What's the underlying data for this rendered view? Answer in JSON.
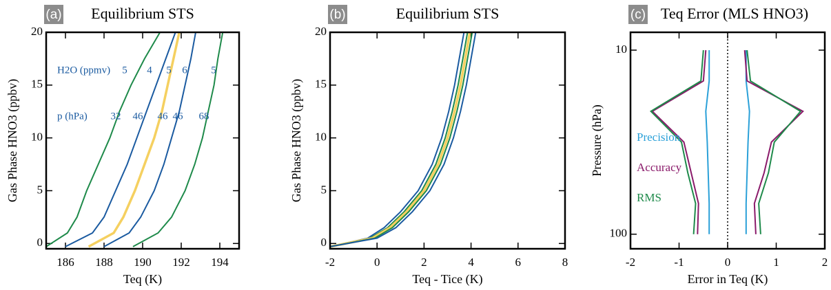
{
  "chart_data": [
    {
      "type": "line",
      "label": "(a)",
      "title": "Equilibrium STS",
      "xlabel": "Teq (K)",
      "ylabel": "Gas Phase HNO3 (ppbv)",
      "xlim": [
        185,
        195
      ],
      "xticks": [
        186,
        188,
        190,
        192,
        194
      ],
      "ylim": [
        -0.5,
        20
      ],
      "yticks": [
        0,
        5,
        10,
        15,
        20
      ],
      "h2o_label": "H2O (ppmv)",
      "p_label": "p (hPa)",
      "series": [
        {
          "color": "#1e8a4a",
          "h2o": 5,
          "p": 32,
          "x": [
            185.0,
            186.1,
            186.6,
            187.1,
            187.7,
            188.3,
            188.8,
            189.4,
            190.1,
            190.9
          ],
          "values": [
            -0.3,
            1,
            2.5,
            5,
            7.5,
            10,
            12.5,
            15,
            17.5,
            20
          ]
        },
        {
          "color": "#1a5aa0",
          "h2o": 4,
          "p": 46,
          "x": [
            186.0,
            187.4,
            188.0,
            188.6,
            189.2,
            189.7,
            190.2,
            190.7,
            191.2,
            191.7
          ],
          "values": [
            -0.3,
            1,
            2.5,
            5,
            7.5,
            10,
            12.5,
            15,
            17.5,
            20
          ]
        },
        {
          "color": "#f5d060",
          "h2o": 5,
          "p": 46,
          "x": [
            187.2,
            188.5,
            189.0,
            189.6,
            190.1,
            190.6,
            191.0,
            191.3,
            191.6,
            191.9
          ],
          "values": [
            -0.3,
            1,
            2.5,
            5,
            7.5,
            10,
            12.5,
            15,
            17.5,
            20
          ]
        },
        {
          "color": "#1a5aa0",
          "h2o": 6,
          "p": 46,
          "x": [
            188.0,
            189.3,
            189.9,
            190.6,
            191.1,
            191.5,
            191.9,
            192.2,
            192.5,
            192.75
          ],
          "values": [
            -0.3,
            1,
            2.5,
            5,
            7.5,
            10,
            12.5,
            15,
            17.5,
            20
          ]
        },
        {
          "color": "#1e8a4a",
          "h2o": 5,
          "p": 68,
          "x": [
            189.5,
            190.8,
            191.5,
            192.2,
            192.7,
            193.1,
            193.4,
            193.7,
            193.9,
            194.15
          ],
          "values": [
            -0.3,
            1,
            2.5,
            5,
            7.5,
            10,
            12.5,
            15,
            17.5,
            20
          ]
        }
      ]
    },
    {
      "type": "line",
      "label": "(b)",
      "title": "Equilibrium STS",
      "xlabel": "Teq - Tice (K)",
      "ylabel": "Gas Phase HNO3 (ppbv)",
      "xlim": [
        -2,
        8
      ],
      "xticks": [
        -2,
        0,
        2,
        4,
        6,
        8
      ],
      "ylim": [
        -0.5,
        20
      ],
      "yticks": [
        0,
        5,
        10,
        15,
        20
      ],
      "series": [
        {
          "color": "#1a5aa0",
          "x": [
            -2,
            -0.4,
            0.3,
            1.0,
            1.75,
            2.35,
            2.75,
            3.05,
            3.3,
            3.5,
            3.7
          ],
          "values": [
            -0.3,
            0.5,
            1.5,
            3,
            5,
            7.5,
            10,
            12.5,
            15,
            17.5,
            20
          ]
        },
        {
          "color": "#1e8a4a",
          "x": [
            -2,
            -0.3,
            0.45,
            1.15,
            1.9,
            2.5,
            2.9,
            3.2,
            3.45,
            3.65,
            3.85
          ],
          "values": [
            -0.3,
            0.5,
            1.5,
            3,
            5,
            7.5,
            10,
            12.5,
            15,
            17.5,
            20
          ]
        },
        {
          "color": "#f5d060",
          "x": [
            -2,
            -0.2,
            0.55,
            1.25,
            2.0,
            2.6,
            3.0,
            3.3,
            3.55,
            3.75,
            3.95
          ],
          "values": [
            -0.3,
            0.5,
            1.5,
            3,
            5,
            7.5,
            10,
            12.5,
            15,
            17.5,
            20
          ]
        },
        {
          "color": "#1e8a4a",
          "x": [
            -2,
            -0.1,
            0.65,
            1.35,
            2.1,
            2.7,
            3.1,
            3.4,
            3.65,
            3.85,
            4.05
          ],
          "values": [
            -0.3,
            0.5,
            1.5,
            3,
            5,
            7.5,
            10,
            12.5,
            15,
            17.5,
            20
          ]
        },
        {
          "color": "#1a5aa0",
          "x": [
            -2,
            0.0,
            0.8,
            1.5,
            2.25,
            2.85,
            3.25,
            3.55,
            3.8,
            4.0,
            4.2
          ],
          "values": [
            -0.3,
            0.5,
            1.5,
            3,
            5,
            7.5,
            10,
            12.5,
            15,
            17.5,
            20
          ]
        }
      ]
    },
    {
      "type": "line",
      "label": "(c)",
      "title": "Teq Error (MLS HNO3)",
      "xlabel": "Error in Teq (K)",
      "ylabel": "Pressure (hPa)",
      "xlim": [
        -2,
        2
      ],
      "xticks": [
        -2,
        -1,
        0,
        1,
        2
      ],
      "ylim": [
        120,
        8
      ],
      "yticks": [
        10,
        100
      ],
      "ylog": true,
      "y": [
        10,
        14.7,
        21.5,
        31.6,
        46.4,
        68.1,
        100
      ],
      "series": [
        {
          "name": "Precision",
          "color": "#2aa0d8",
          "values": [
            0.38,
            0.38,
            0.45,
            0.42,
            0.4,
            0.38,
            0.38
          ],
          "values_left": [
            -0.38,
            -0.38,
            -0.45,
            -0.42,
            -0.4,
            -0.38,
            -0.38
          ]
        },
        {
          "name": "Accuracy",
          "color": "#8a1a6a",
          "values": [
            0.35,
            0.4,
            1.55,
            0.9,
            0.75,
            0.55,
            0.58
          ],
          "values_left": [
            -0.45,
            -0.5,
            -1.55,
            -0.9,
            -0.75,
            -0.6,
            -0.62
          ]
        },
        {
          "name": "RMS",
          "color": "#1e8a4a",
          "values": [
            0.4,
            0.47,
            1.5,
            0.96,
            0.84,
            0.64,
            0.68
          ],
          "values_left": [
            -0.5,
            -0.55,
            -1.58,
            -0.95,
            -0.82,
            -0.66,
            -0.7
          ]
        }
      ]
    }
  ]
}
